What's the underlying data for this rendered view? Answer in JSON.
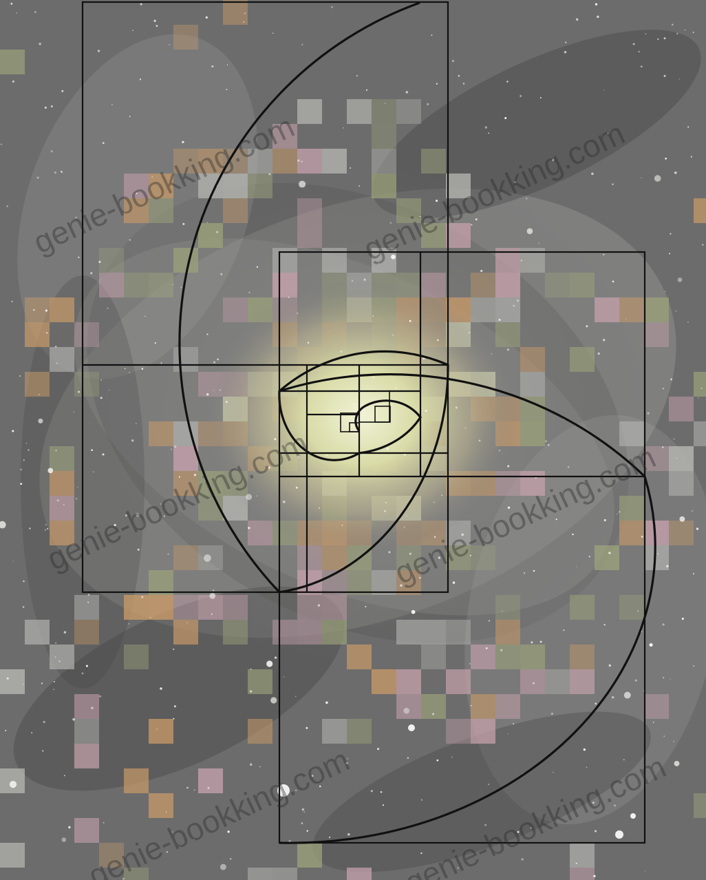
{
  "image": {
    "subject": "spiral galaxy photograph with golden-ratio rectangles and Fibonacci spiral overlay",
    "colors": {
      "background": "#6a6a6a",
      "arm_light": "#b9b9b5",
      "arm_dark": "#3e3e3e",
      "core": "#e8ecc4",
      "pixel_tan": "#c89a68",
      "pixel_pink": "#c7a2ad",
      "pixel_olive": "#9ba27a",
      "overlay_line": "#111111"
    }
  },
  "watermark": {
    "text": "genie-bookking.com"
  }
}
